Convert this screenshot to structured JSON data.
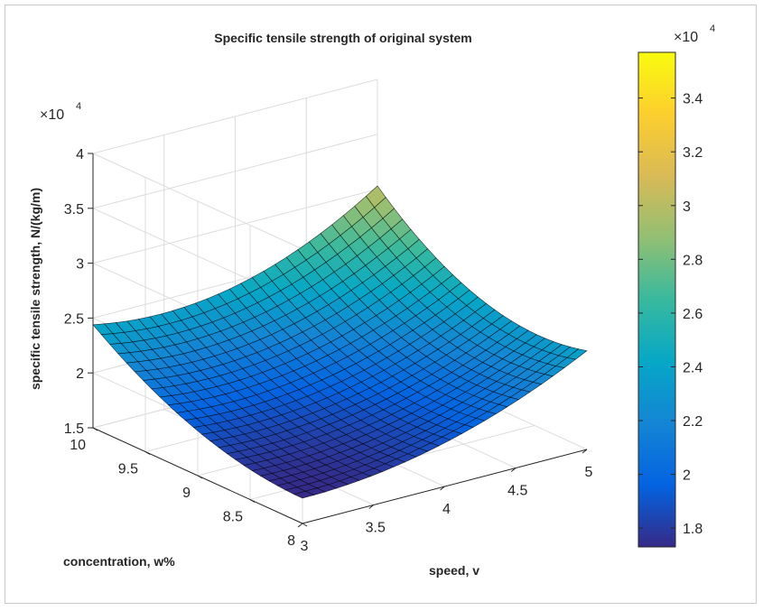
{
  "chart_data": {
    "type": "surface",
    "title": "Specific tensile strength of original system",
    "xlabel": "speed, v",
    "ylabel": "concentration, w%",
    "zlabel": "specific tensile strength, N/(kg/m)",
    "z_multiplier_label": "×10",
    "z_multiplier_exp": "4",
    "x_range": [
      3,
      5
    ],
    "y_range": [
      8,
      10
    ],
    "zlim": [
      15000,
      40000
    ],
    "grid": true,
    "colormap": "parula",
    "x_ticks": [
      3,
      3.5,
      4,
      4.5,
      5
    ],
    "x_tick_labels": [
      "3",
      "3.5",
      "4",
      "4.5",
      "5"
    ],
    "y_ticks": [
      8,
      8.5,
      9,
      9.5,
      10
    ],
    "y_tick_labels": [
      "8",
      "8.5",
      "9",
      "9.5",
      "10"
    ],
    "z_ticks": [
      15000,
      20000,
      25000,
      30000,
      35000,
      40000
    ],
    "z_tick_labels": [
      "1.5",
      "2",
      "2.5",
      "3",
      "3.5",
      "4"
    ],
    "corner_values": {
      "x3_y8": 17300,
      "x5_y8": 24400,
      "x3_y10": 24000,
      "x5_y10": 25700
    },
    "min_value": 17300,
    "max_value": 35700,
    "colorbar": {
      "range": [
        17300,
        35700
      ],
      "multiplier_label": "×10",
      "multiplier_exp": "4",
      "ticks": [
        18000,
        20000,
        22000,
        24000,
        26000,
        28000,
        30000,
        32000,
        34000
      ],
      "tick_labels": [
        "1.8",
        "2",
        "2.2",
        "2.4",
        "2.6",
        "2.8",
        "3",
        "3.2",
        "3.4"
      ]
    },
    "colormap_stops": [
      "#352a87",
      "#0363e1",
      "#1485d4",
      "#06a7c6",
      "#38b99e",
      "#92bf73",
      "#d9ba56",
      "#fcce2e",
      "#f9fb0e"
    ]
  }
}
